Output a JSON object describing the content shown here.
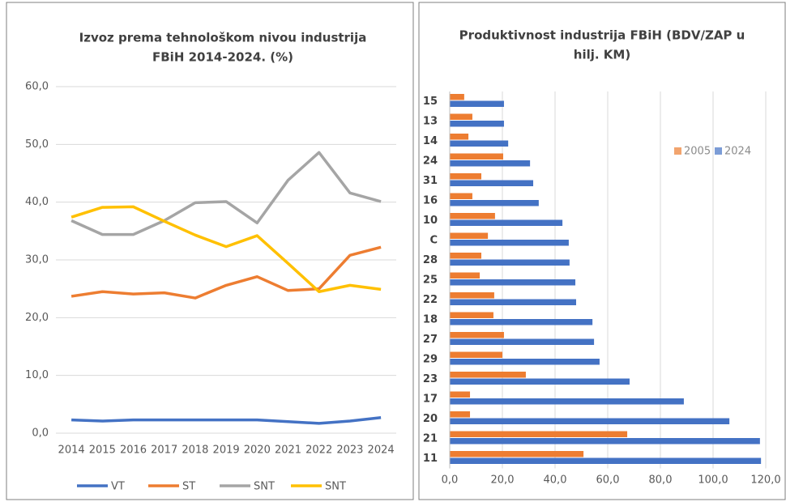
{
  "chart_data": [
    {
      "type": "line",
      "title": [
        "Izvoz prema tehnološkom nivou industrija",
        "FBiH 2014-2024. (%)"
      ],
      "categories": [
        "2014",
        "2015",
        "2016",
        "2017",
        "2018",
        "2019",
        "2020",
        "2021",
        "2022",
        "2023",
        "2024"
      ],
      "series": [
        {
          "name": "VT",
          "color": "#4472c4",
          "values": [
            2.3,
            2.1,
            2.3,
            2.3,
            2.3,
            2.3,
            2.3,
            2.0,
            1.7,
            2.1,
            2.7
          ]
        },
        {
          "name": "ST",
          "color": "#ed7d31",
          "values": [
            23.7,
            24.5,
            24.1,
            24.3,
            23.4,
            25.6,
            27.1,
            24.7,
            25.0,
            30.8,
            32.2
          ]
        },
        {
          "name": "SNT",
          "color": "#a5a5a5",
          "values": [
            36.8,
            34.4,
            34.4,
            36.8,
            39.9,
            40.1,
            36.4,
            43.8,
            48.6,
            41.6,
            40.1
          ]
        },
        {
          "name": "SNT",
          "color": "#ffc000",
          "values": [
            37.4,
            39.1,
            39.2,
            36.7,
            34.3,
            32.3,
            34.2,
            29.4,
            24.5,
            25.6,
            24.9
          ]
        }
      ],
      "ylim": [
        0,
        60
      ],
      "yticks": [
        {
          "value": 0,
          "label": "0,0"
        },
        {
          "value": 10,
          "label": "10,0"
        },
        {
          "value": 20,
          "label": "20,0"
        },
        {
          "value": 30,
          "label": "30,0"
        },
        {
          "value": 40,
          "label": "40,0"
        },
        {
          "value": 50,
          "label": "50,0"
        },
        {
          "value": 60,
          "label": "60,0"
        }
      ],
      "grid": true,
      "legend": "bottom"
    },
    {
      "type": "barh",
      "title": [
        "Produktivnost industrija FBiH (BDV/ZAP u",
        "hilj. KM)"
      ],
      "categories": [
        "15",
        "13",
        "14",
        "24",
        "31",
        "16",
        "10",
        "C",
        "28",
        "25",
        "22",
        "18",
        "27",
        "29",
        "23",
        "17",
        "20",
        "21",
        "11"
      ],
      "series": [
        {
          "name": "2005",
          "color": "#ed7d31",
          "values": [
            5.5,
            8.6,
            7.1,
            20.3,
            12.0,
            8.6,
            17.2,
            14.5,
            12.0,
            11.4,
            16.9,
            16.6,
            20.6,
            20.0,
            28.9,
            7.7,
            7.7,
            67.4,
            50.8
          ]
        },
        {
          "name": "2024",
          "color": "#4472c4",
          "values": [
            20.6,
            20.6,
            22.2,
            30.5,
            31.7,
            33.8,
            42.8,
            45.2,
            45.5,
            47.7,
            48.0,
            54.2,
            54.8,
            56.9,
            68.3,
            88.9,
            106.2,
            117.8,
            118.2
          ]
        }
      ],
      "xlim": [
        0,
        120
      ],
      "xticks": [
        {
          "value": 0,
          "label": "0,0"
        },
        {
          "value": 20,
          "label": "20,0"
        },
        {
          "value": 40,
          "label": "40,0"
        },
        {
          "value": 60,
          "label": "60,0"
        },
        {
          "value": 80,
          "label": "80,0"
        },
        {
          "value": 100,
          "label": "100,0"
        },
        {
          "value": 120,
          "label": "120,0"
        }
      ],
      "grid": true,
      "legend": "top-right"
    }
  ]
}
